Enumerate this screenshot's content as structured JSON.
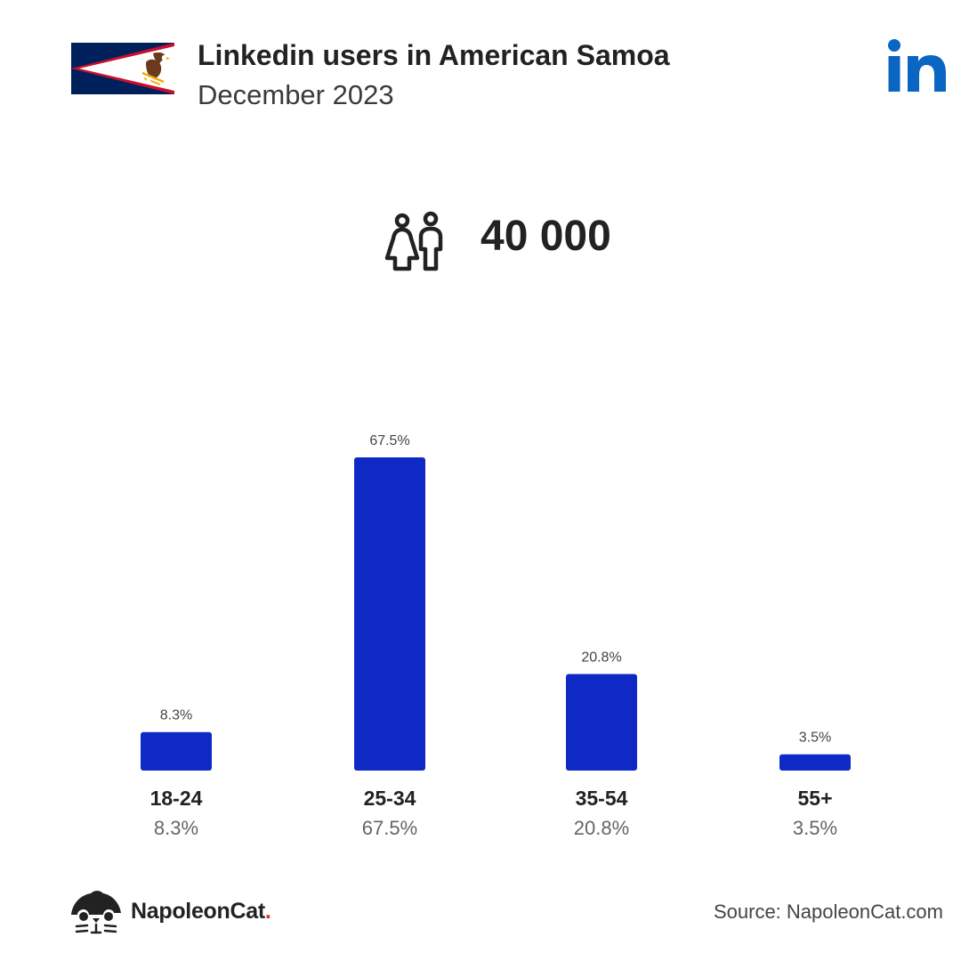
{
  "header": {
    "title": "Linkedin users in American Samoa",
    "subtitle": "December 2023"
  },
  "summary": {
    "users_count": "40 000"
  },
  "colors": {
    "bar": "#0f2ac4",
    "linkedin_blue": "#0a66c2",
    "flag_navy": "#00205b",
    "flag_red": "#c8102e",
    "accent_red": "#e0301e"
  },
  "icons": {
    "flag": "american-samoa-flag-icon",
    "brand": "linkedin-logo-icon",
    "users": "users-icon",
    "footer_logo": "napoleoncat-logo-icon"
  },
  "chart_data": {
    "type": "bar",
    "categories": [
      "18-24",
      "25-34",
      "35-54",
      "55+"
    ],
    "values": [
      8.3,
      67.5,
      20.8,
      3.5
    ],
    "value_labels": [
      "8.3%",
      "67.5%",
      "20.8%",
      "3.5%"
    ],
    "title": "",
    "xlabel": "",
    "ylabel": "",
    "ylim": [
      0,
      67.5
    ],
    "grid": false,
    "legend": "none"
  },
  "footer": {
    "brand_name": "NapoleonCat",
    "brand_dot": ".",
    "source": "Source: NapoleonCat.com"
  }
}
